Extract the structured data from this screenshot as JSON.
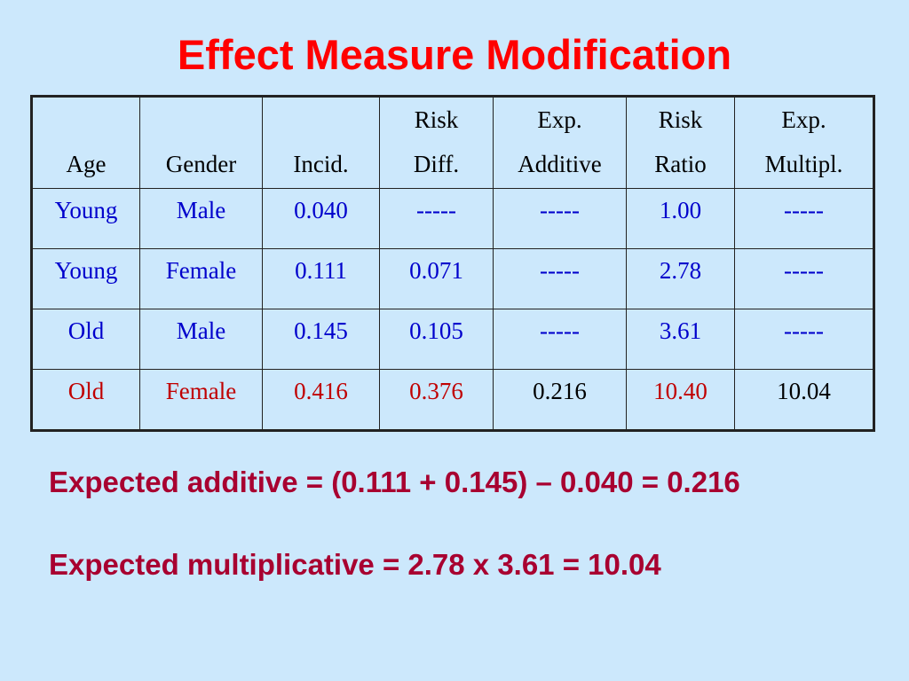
{
  "title": "Effect Measure Modification",
  "table": {
    "headers": [
      {
        "line1": "",
        "line2": "Age"
      },
      {
        "line1": "",
        "line2": "Gender"
      },
      {
        "line1": "",
        "line2": "Incid."
      },
      {
        "line1": "Risk",
        "line2": "Diff."
      },
      {
        "line1": "Exp.",
        "line2": "Additive"
      },
      {
        "line1": "Risk",
        "line2": "Ratio"
      },
      {
        "line1": "Exp.",
        "line2": "Multipl."
      }
    ],
    "rows": [
      {
        "age": "Young",
        "gender": "Male",
        "incid": "0.040",
        "risk_diff": "-----",
        "exp_additive": "-----",
        "risk_ratio": "1.00",
        "exp_multipl": "-----"
      },
      {
        "age": "Young",
        "gender": "Female",
        "incid": "0.111",
        "risk_diff": "0.071",
        "exp_additive": "-----",
        "risk_ratio": "2.78",
        "exp_multipl": "-----"
      },
      {
        "age": "Old",
        "gender": "Male",
        "incid": "0.145",
        "risk_diff": "0.105",
        "exp_additive": "-----",
        "risk_ratio": "3.61",
        "exp_multipl": "-----"
      },
      {
        "age": "Old",
        "gender": "Female",
        "incid": "0.416",
        "risk_diff": "0.376",
        "exp_additive": "0.216",
        "risk_ratio": "10.40",
        "exp_multipl": "10.04"
      }
    ]
  },
  "notes": {
    "additive": "Expected additive = (0.111 + 0.145) – 0.040 = 0.216",
    "multiplicative": "Expected multiplicative = 2.78 x 3.61 = 10.04"
  },
  "colors": {
    "background": "#cce8fc",
    "title": "#ff0000",
    "row_text": "#0000cc",
    "highlight_row_text": "#c00000",
    "expected_value_text": "#000000",
    "notes_text": "#a80030"
  }
}
